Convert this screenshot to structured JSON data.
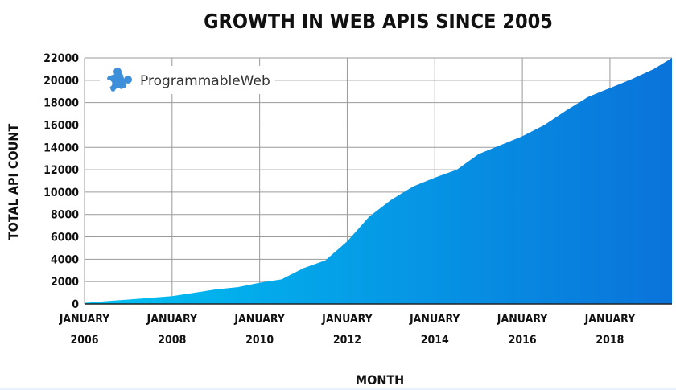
{
  "colors": {
    "area_light": "#00c2f2",
    "area_dark": "#0a73da",
    "text": "#111111",
    "grid": "#9a9a9a",
    "logo_blue": "#3c8fd8"
  },
  "logo": {
    "name": "ProgrammableWeb",
    "icon": "puzzle-piece-icon"
  },
  "chart_data": {
    "type": "area",
    "title": "GROWTH IN WEB APIS SINCE 2005",
    "xlabel": "MONTH",
    "ylabel": "TOTAL API COUNT",
    "x_ticks": [
      {
        "month": "JANUARY",
        "year": "2006",
        "date": "2006-01"
      },
      {
        "month": "JANUARY",
        "year": "2008",
        "date": "2008-01"
      },
      {
        "month": "JANUARY",
        "year": "2010",
        "date": "2010-01"
      },
      {
        "month": "JANUARY",
        "year": "2012",
        "date": "2012-01"
      },
      {
        "month": "JANUARY",
        "year": "2014",
        "date": "2014-01"
      },
      {
        "month": "JANUARY",
        "year": "2016",
        "date": "2016-01"
      },
      {
        "month": "JANUARY",
        "year": "2018",
        "date": "2018-01"
      }
    ],
    "y_ticks": [
      0,
      2000,
      4000,
      6000,
      8000,
      10000,
      12000,
      14000,
      16000,
      18000,
      20000,
      22000
    ],
    "ylim": [
      0,
      22000
    ],
    "xlim": [
      "2006-01",
      "2019-06"
    ],
    "grid": true,
    "legend": "none",
    "series": [
      {
        "x": [
          "2006-01",
          "2006-07",
          "2007-01",
          "2007-07",
          "2008-01",
          "2008-07",
          "2009-01",
          "2009-07",
          "2010-01",
          "2010-07",
          "2011-01",
          "2011-07",
          "2012-01",
          "2012-07",
          "2013-01",
          "2013-07",
          "2014-01",
          "2014-07",
          "2015-01",
          "2015-07",
          "2016-01",
          "2016-07",
          "2017-01",
          "2017-07",
          "2018-01",
          "2018-07",
          "2019-01",
          "2019-06"
        ],
        "values": [
          100,
          250,
          400,
          550,
          700,
          1000,
          1300,
          1500,
          1900,
          2200,
          3200,
          3900,
          5600,
          7800,
          9300,
          10500,
          11300,
          12000,
          13400,
          14200,
          15000,
          16000,
          17300,
          18500,
          19300,
          20100,
          21000,
          22000
        ]
      }
    ]
  }
}
